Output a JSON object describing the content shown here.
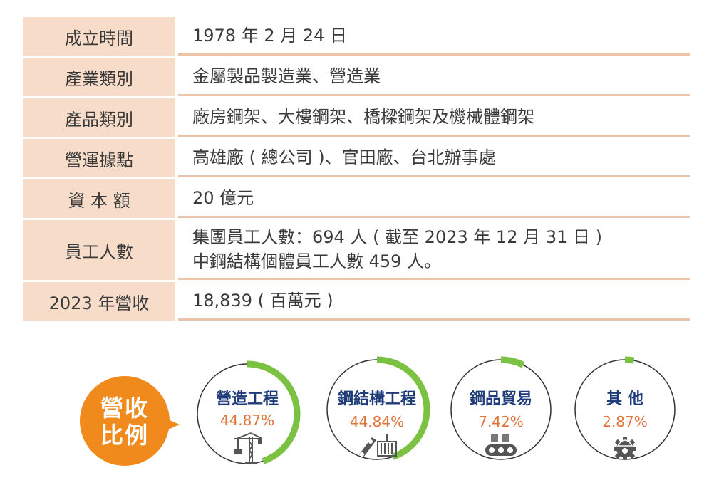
{
  "rows": [
    {
      "label": "成立時間",
      "lines": [
        "1978 年 2 月 24 日"
      ]
    },
    {
      "label": "產業類別",
      "lines": [
        "金屬製品製造業、營造業"
      ]
    },
    {
      "label": "產品類別",
      "lines": [
        "廠房鋼架、大樓鋼架、橋樑鋼架及機械體鋼架"
      ]
    },
    {
      "label": "營運據點",
      "lines": [
        "高雄廠 ( 總公司 )、官田廠、台北辦事處"
      ]
    },
    {
      "label": "資 本 額",
      "lines": [
        "20 億元"
      ]
    },
    {
      "label": "員工人數",
      "lines": [
        "集團員工人數：694 人 ( 截至 2023 年 12 月 31 日 )",
        "中鋼結構個體員工人數 459 人。"
      ]
    },
    {
      "label": "2023 年營收",
      "lines": [
        "18,839 ( 百萬元 )"
      ]
    }
  ],
  "revenue": {
    "bubble_lines": [
      "營收",
      "比例"
    ],
    "segments": [
      {
        "title": "營造工程",
        "percent_label": "44.87%",
        "share": 0.4487,
        "icon": "crane-icon"
      },
      {
        "title": "鋼結構工程",
        "percent_label": "44.84%",
        "share": 0.4484,
        "icon": "steel-beam-container-icon"
      },
      {
        "title": "鋼品貿易",
        "percent_label": "7.42%",
        "share": 0.0742,
        "icon": "conveyor-icon"
      },
      {
        "title": "其 他",
        "percent_label": "2.87%",
        "share": 0.0287,
        "icon": "gear-helmet-icon"
      }
    ],
    "colors": {
      "ring": "#7cc242",
      "circle": "#333333",
      "title": "#1f3b7a",
      "percent": "#e0733a",
      "bubble": "#f08a1c"
    }
  }
}
